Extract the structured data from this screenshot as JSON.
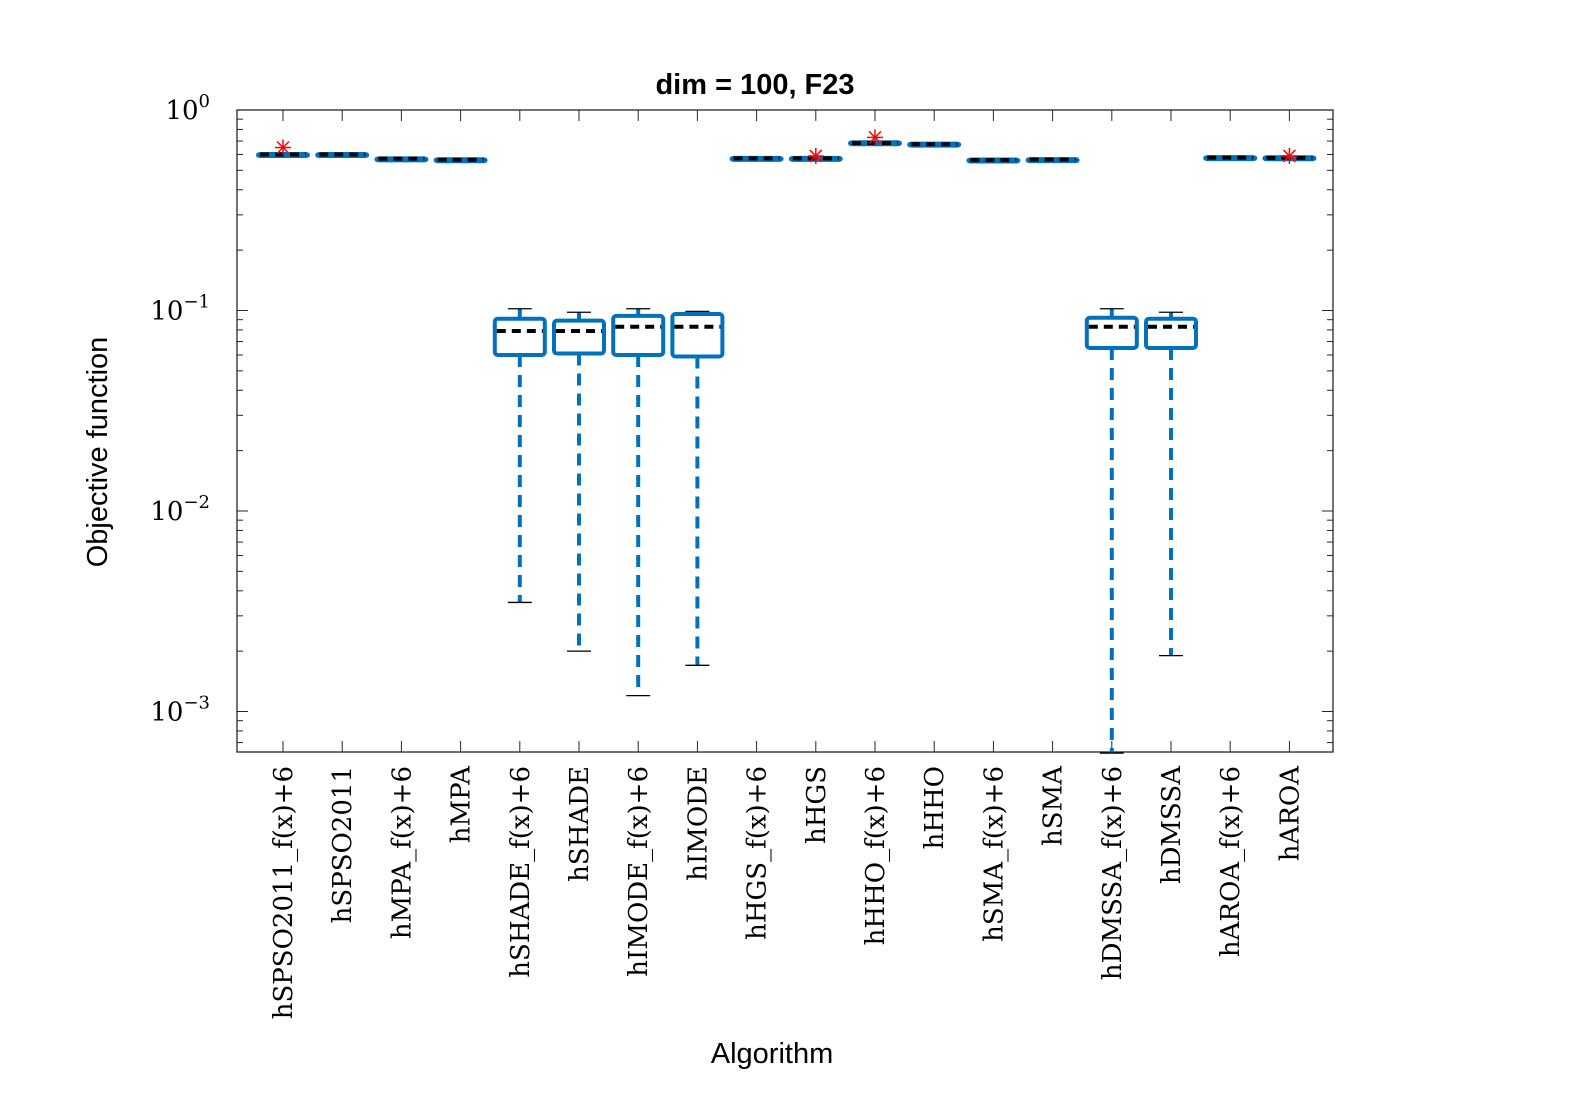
{
  "chart_data": {
    "type": "box",
    "title": "dim = 100,  F23",
    "xlabel": "Algorithm",
    "ylabel": "Objective function",
    "yscale": "log",
    "ylim": [
      0.00062,
      1
    ],
    "yticks": [
      {
        "value": 1,
        "base": "10",
        "exp": "0"
      },
      {
        "value": 0.1,
        "base": "10",
        "exp": "−1"
      },
      {
        "value": 0.01,
        "base": "10",
        "exp": "−2"
      },
      {
        "value": 0.001,
        "base": "10",
        "exp": "−3"
      }
    ],
    "grid": false,
    "box_color": "#0072BD",
    "median_color": "#000000",
    "outlier_color": "#FF0000",
    "categories": [
      "hSPSO2011_f(x)+6",
      "hSPSO2011",
      "hMPA_f(x)+6",
      "hMPA",
      "hSHADE_f(x)+6",
      "hSHADE",
      "hIMODE_f(x)+6",
      "hIMODE",
      "hHGS_f(x)+6",
      "hHGS",
      "hHHO_f(x)+6",
      "hHHO",
      "hSMA_f(x)+6",
      "hSMA",
      "hDMSSA_f(x)+6",
      "hDMSSA",
      "hAROA_f(x)+6",
      "hAROA"
    ],
    "boxes": [
      {
        "min": 0.595,
        "q1": 0.597,
        "median": 0.6,
        "q3": 0.603,
        "max": 0.606,
        "outliers": [
          0.65
        ]
      },
      {
        "min": 0.595,
        "q1": 0.597,
        "median": 0.6,
        "q3": 0.603,
        "max": 0.606,
        "outliers": []
      },
      {
        "min": 0.568,
        "q1": 0.57,
        "median": 0.572,
        "q3": 0.574,
        "max": 0.577,
        "outliers": []
      },
      {
        "min": 0.56,
        "q1": 0.562,
        "median": 0.565,
        "q3": 0.568,
        "max": 0.571,
        "outliers": []
      },
      {
        "min": 0.0035,
        "q1": 0.06,
        "median": 0.079,
        "q3": 0.091,
        "max": 0.102,
        "outliers": []
      },
      {
        "min": 0.002,
        "q1": 0.061,
        "median": 0.079,
        "q3": 0.089,
        "max": 0.098,
        "outliers": []
      },
      {
        "min": 0.0012,
        "q1": 0.06,
        "median": 0.083,
        "q3": 0.094,
        "max": 0.102,
        "outliers": []
      },
      {
        "min": 0.0017,
        "q1": 0.059,
        "median": 0.083,
        "q3": 0.096,
        "max": 0.099,
        "outliers": []
      },
      {
        "min": 0.57,
        "q1": 0.572,
        "median": 0.574,
        "q3": 0.577,
        "max": 0.58,
        "outliers": []
      },
      {
        "min": 0.568,
        "q1": 0.571,
        "median": 0.574,
        "q3": 0.577,
        "max": 0.58,
        "outliers": [
          0.59
        ]
      },
      {
        "min": 0.678,
        "q1": 0.681,
        "median": 0.685,
        "q3": 0.69,
        "max": 0.695,
        "outliers": [
          0.73
        ]
      },
      {
        "min": 0.668,
        "q1": 0.67,
        "median": 0.675,
        "q3": 0.68,
        "max": 0.685,
        "outliers": []
      },
      {
        "min": 0.555,
        "q1": 0.558,
        "median": 0.562,
        "q3": 0.566,
        "max": 0.57,
        "outliers": []
      },
      {
        "min": 0.56,
        "q1": 0.563,
        "median": 0.566,
        "q3": 0.569,
        "max": 0.572,
        "outliers": []
      },
      {
        "min": 0.00062,
        "q1": 0.065,
        "median": 0.083,
        "q3": 0.092,
        "max": 0.102,
        "outliers": []
      },
      {
        "min": 0.0019,
        "q1": 0.065,
        "median": 0.083,
        "q3": 0.091,
        "max": 0.098,
        "outliers": []
      },
      {
        "min": 0.574,
        "q1": 0.576,
        "median": 0.579,
        "q3": 0.582,
        "max": 0.585,
        "outliers": []
      },
      {
        "min": 0.57,
        "q1": 0.573,
        "median": 0.577,
        "q3": 0.581,
        "max": 0.585,
        "outliers": [
          0.59
        ]
      }
    ]
  }
}
